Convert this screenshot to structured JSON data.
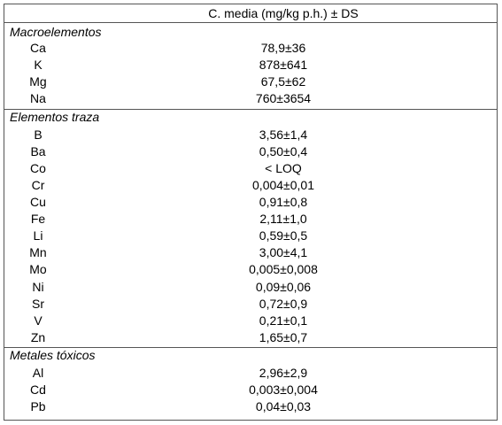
{
  "table": {
    "header": "C. media (mg/kg p.h.) ± DS",
    "sections": [
      {
        "title": "Macroelementos",
        "rows": [
          [
            "Ca",
            "78,9±36"
          ],
          [
            "K",
            "878±641"
          ],
          [
            "Mg",
            "67,5±62"
          ],
          [
            "Na",
            "760±3654"
          ]
        ]
      },
      {
        "title": "Elementos traza",
        "rows": [
          [
            "B",
            "3,56±1,4"
          ],
          [
            "Ba",
            "0,50±0,4"
          ],
          [
            "Co",
            "< LOQ"
          ],
          [
            "Cr",
            "0,004±0,01"
          ],
          [
            "Cu",
            "0,91±0,8"
          ],
          [
            "Fe",
            "2,11±1,0"
          ],
          [
            "Li",
            "0,59±0,5"
          ],
          [
            "Mn",
            "3,00±4,1"
          ],
          [
            "Mo",
            "0,005±0,008"
          ],
          [
            "Ni",
            "0,09±0,06"
          ],
          [
            "Sr",
            "0,72±0,9"
          ],
          [
            "V",
            "0,21±0,1"
          ],
          [
            "Zn",
            "1,65±0,7"
          ]
        ]
      },
      {
        "title": "Metales tóxicos",
        "rows": [
          [
            "Al",
            "2,96±2,9"
          ],
          [
            "Cd",
            "0,003±0,004"
          ],
          [
            "Pb",
            "0,04±0,03"
          ]
        ]
      }
    ]
  }
}
